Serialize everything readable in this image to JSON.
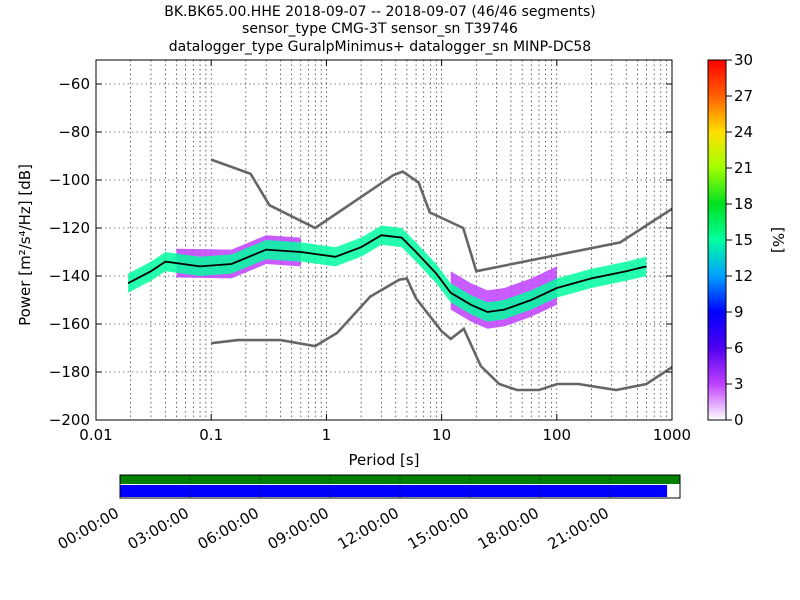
{
  "chart_data": [
    {
      "type": "heatmap",
      "title_lines": [
        "BK.BK65.00.HHE   2018-09-07 -- 2018-09-07  (46/46 segments)",
        "sensor_type CMG-3T sensor_sn T39746",
        "datalogger_type GuralpMinimus+ datalogger_sn MINP-DC58"
      ],
      "xlabel": "Period [s]",
      "ylabel": "Power [m²/s⁴/Hz] [dB]",
      "xscale": "log",
      "xlim": [
        0.01,
        1000
      ],
      "ylim": [
        -200,
        -50
      ],
      "xticks": [
        0.01,
        0.1,
        1,
        10,
        100,
        1000
      ],
      "xtick_labels": [
        "0.01",
        "0.1",
        "1",
        "10",
        "100",
        "1000"
      ],
      "yticks": [
        -200,
        -180,
        -160,
        -140,
        -120,
        -100,
        -80,
        -60
      ],
      "ytick_labels": [
        "−200",
        "−180",
        "−160",
        "−140",
        "−120",
        "−100",
        "−80",
        "−60"
      ],
      "grid": true,
      "colorbar": {
        "label": "[%]",
        "min": 0,
        "max": 30,
        "ticks": [
          0,
          3,
          6,
          9,
          12,
          15,
          18,
          21,
          24,
          27,
          30
        ]
      },
      "series": [
        {
          "role": "noise-model-high",
          "x": [
            0.1,
            0.22,
            0.32,
            0.8,
            3.8,
            4.6,
            6.3,
            7.9,
            15.4,
            20,
            354.8,
            1000
          ],
          "y": [
            -91.5,
            -97.4,
            -110.5,
            -120,
            -98,
            -96.5,
            -101,
            -113.5,
            -120,
            -138,
            -126,
            -112
          ]
        },
        {
          "role": "noise-model-low",
          "x": [
            0.1,
            0.17,
            0.4,
            0.8,
            1.24,
            2.4,
            4.3,
            5,
            6,
            10,
            12,
            15.6,
            21.9,
            31.6,
            45,
            70,
            101,
            154,
            328,
            600,
            1000
          ],
          "y": [
            -168,
            -166.7,
            -166.7,
            -169.2,
            -163.7,
            -148.6,
            -141.5,
            -141.1,
            -149.3,
            -163,
            -166.2,
            -162,
            -177.5,
            -185,
            -187.5,
            -187.5,
            -185,
            -185,
            -187.5,
            -185,
            -178
          ]
        },
        {
          "role": "mode-line",
          "x": [
            0.019,
            0.03,
            0.04,
            0.08,
            0.15,
            0.3,
            0.6,
            1.2,
            2,
            3,
            4.5,
            6,
            9,
            12,
            18,
            25,
            35,
            60,
            100,
            200,
            400,
            600
          ],
          "y": [
            -143,
            -138,
            -134,
            -136,
            -135,
            -129,
            -130,
            -132,
            -128,
            -123,
            -124,
            -130,
            -139,
            -147,
            -152,
            -155,
            -154,
            -150,
            -145,
            -141,
            -138,
            -136
          ]
        }
      ],
      "density_bands": [
        {
          "x": [
            0.019,
            0.03,
            0.04,
            0.08,
            0.15,
            0.3,
            0.6,
            1.2,
            2,
            3,
            4.5,
            6,
            9,
            12,
            18,
            25,
            35,
            60,
            100,
            200,
            400,
            600
          ],
          "lower_offset": 4,
          "upper_offset": 4,
          "percent": 15
        },
        {
          "x": [
            0.05,
            0.15,
            0.3,
            0.6
          ],
          "lower_offset": 6,
          "upper_offset": 6,
          "percent": 5
        },
        {
          "x": [
            12,
            18,
            25,
            35,
            60,
            100
          ],
          "lower_offset": 7,
          "upper_offset": 9,
          "percent": 3
        }
      ]
    },
    {
      "type": "timeline",
      "xtick_labels": [
        "00:00:00",
        "03:00:00",
        "06:00:00",
        "09:00:00",
        "12:00:00",
        "15:00:00",
        "18:00:00",
        "21:00:00"
      ],
      "tracks": [
        {
          "name": "available-data",
          "color": "#008000",
          "coverage": 1.0
        },
        {
          "name": "used-data",
          "color": "#0000ff",
          "coverage": 0.977
        }
      ]
    }
  ]
}
